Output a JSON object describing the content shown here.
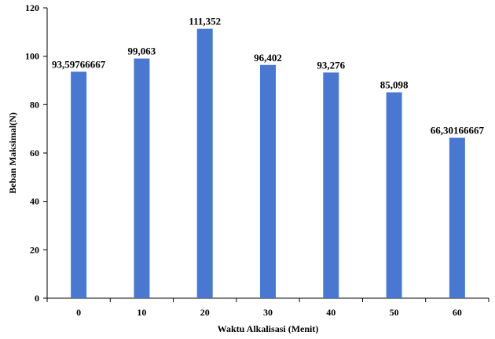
{
  "chart_data": {
    "type": "bar",
    "title": "",
    "xlabel": "Waktu Alkalisasi (Menit)",
    "ylabel": "Beban Maksimal(N)",
    "categories": [
      "0",
      "10",
      "20",
      "30",
      "40",
      "50",
      "60"
    ],
    "values": [
      93.59766667,
      99.063,
      111.352,
      96.402,
      93.276,
      85.098,
      66.30166667
    ],
    "data_labels": [
      "93,59766667",
      "99,063",
      "111,352",
      "96,402",
      "93,276",
      "85,098",
      "66,30166667"
    ],
    "ylim": [
      0,
      120
    ],
    "yticks": [
      0,
      20,
      40,
      60,
      80,
      100,
      120
    ],
    "grid": false,
    "legend": "none",
    "bar_color": "#4a78d0"
  }
}
